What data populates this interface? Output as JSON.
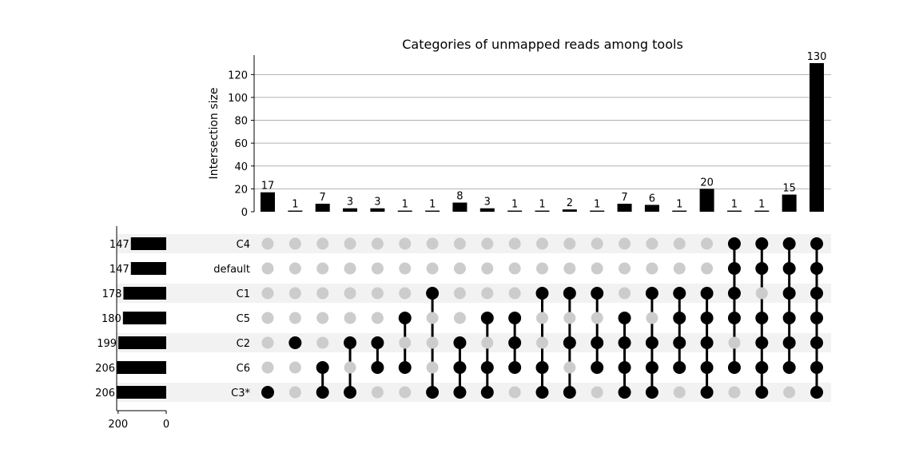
{
  "chart_data": {
    "type": "bar",
    "title": "Categories of unmapped reads among tools",
    "ylabel": "Intersection size",
    "ylim": [
      0,
      137
    ],
    "yticks": [
      0,
      20,
      40,
      60,
      80,
      100,
      120
    ],
    "grid": true,
    "sets": [
      {
        "name": "C4",
        "size": 147
      },
      {
        "name": "default",
        "size": 147
      },
      {
        "name": "C1",
        "size": 178
      },
      {
        "name": "C5",
        "size": 180
      },
      {
        "name": "C2",
        "size": 199
      },
      {
        "name": "C6",
        "size": 206
      },
      {
        "name": "C3*",
        "size": 206
      }
    ],
    "set_size_ticks": [
      200,
      0
    ],
    "set_size_xlim": [
      0,
      206
    ],
    "intersections": [
      {
        "members": [
          "C3*"
        ],
        "size": 17
      },
      {
        "members": [
          "C2"
        ],
        "size": 1
      },
      {
        "members": [
          "C6",
          "C3*"
        ],
        "size": 7
      },
      {
        "members": [
          "C2",
          "C3*"
        ],
        "size": 3
      },
      {
        "members": [
          "C2",
          "C6"
        ],
        "size": 3
      },
      {
        "members": [
          "C5",
          "C6"
        ],
        "size": 1
      },
      {
        "members": [
          "C1",
          "C3*"
        ],
        "size": 1
      },
      {
        "members": [
          "C2",
          "C6",
          "C3*"
        ],
        "size": 8
      },
      {
        "members": [
          "C5",
          "C6",
          "C3*"
        ],
        "size": 3
      },
      {
        "members": [
          "C5",
          "C2",
          "C6"
        ],
        "size": 1
      },
      {
        "members": [
          "C1",
          "C6",
          "C3*"
        ],
        "size": 1
      },
      {
        "members": [
          "C1",
          "C2",
          "C3*"
        ],
        "size": 2
      },
      {
        "members": [
          "C1",
          "C2",
          "C6"
        ],
        "size": 1
      },
      {
        "members": [
          "C5",
          "C2",
          "C6",
          "C3*"
        ],
        "size": 7
      },
      {
        "members": [
          "C1",
          "C2",
          "C6",
          "C3*"
        ],
        "size": 6
      },
      {
        "members": [
          "C1",
          "C5",
          "C2",
          "C6"
        ],
        "size": 1
      },
      {
        "members": [
          "C1",
          "C5",
          "C2",
          "C6",
          "C3*"
        ],
        "size": 20
      },
      {
        "members": [
          "C4",
          "default",
          "C1",
          "C5",
          "C6"
        ],
        "size": 1
      },
      {
        "members": [
          "C4",
          "default",
          "C5",
          "C2",
          "C6",
          "C3*"
        ],
        "size": 1
      },
      {
        "members": [
          "C4",
          "default",
          "C1",
          "C5",
          "C2",
          "C6"
        ],
        "size": 15
      },
      {
        "members": [
          "C4",
          "default",
          "C1",
          "C5",
          "C2",
          "C6",
          "C3*"
        ],
        "size": 130
      }
    ]
  },
  "colors": {
    "bar": "#000000",
    "dot_active": "#000000",
    "dot_inactive": "#cccccc",
    "row_shade": "#f2f2f2",
    "grid": "#b0b0b0"
  }
}
